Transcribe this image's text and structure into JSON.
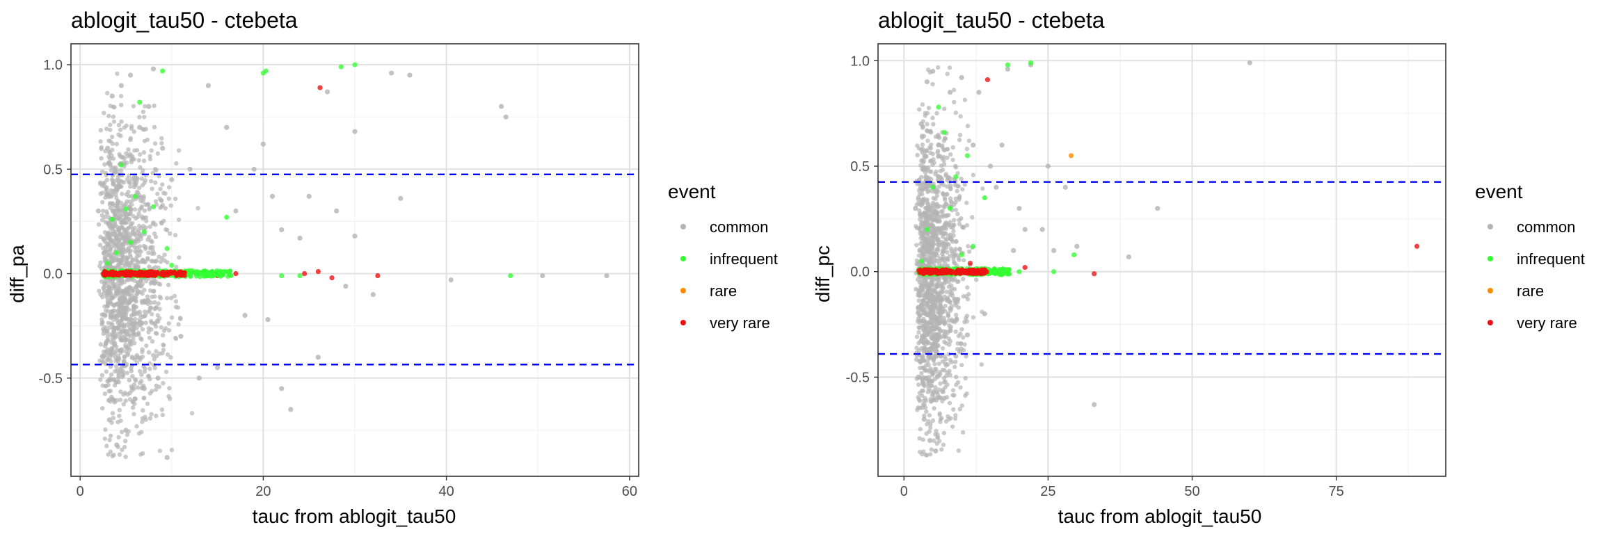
{
  "colors": {
    "common": "#b3b3b3",
    "infrequent": "#33ff33",
    "rare": "#ff8c00",
    "very rare": "#ee1111",
    "reference_line": "#0000ff",
    "grid_major": "#e0e0e0",
    "grid_minor": "#f0f0f0",
    "panel_border": "#333333"
  },
  "chart_data": [
    {
      "type": "scatter",
      "title": "ablogit_tau50 - ctebeta",
      "xlabel": "tauc from ablogit_tau50",
      "ylabel": "diff_pa",
      "xlim": [
        -1,
        61
      ],
      "ylim": [
        -0.97,
        1.1
      ],
      "x_ticks": [
        0,
        20,
        40,
        60
      ],
      "x_tick_labels": [
        "0",
        "20",
        "40",
        "60"
      ],
      "y_ticks": [
        -0.5,
        0.0,
        0.5,
        1.0
      ],
      "y_tick_labels": [
        "-0.5",
        "0.0",
        "0.5",
        "1.0"
      ],
      "grid": true,
      "reference_lines": [
        0.475,
        -0.435
      ],
      "legend": {
        "title": "event",
        "position": "right",
        "entries": [
          "common",
          "infrequent",
          "rare",
          "very rare"
        ]
      },
      "series": [
        {
          "name": "common",
          "points": [
            [
              2,
              0.3
            ],
            [
              2.5,
              -0.4
            ],
            [
              3,
              0.6
            ],
            [
              3.2,
              -0.7
            ],
            [
              3.5,
              0.85
            ],
            [
              4,
              -0.82
            ],
            [
              4.5,
              0.9
            ],
            [
              5,
              -0.75
            ],
            [
              5.5,
              0.95
            ],
            [
              6,
              -0.6
            ],
            [
              6.5,
              0.7
            ],
            [
              7,
              -0.55
            ],
            [
              7.5,
              0.8
            ],
            [
              8,
              0.98
            ],
            [
              8.5,
              -0.5
            ],
            [
              9,
              0.6
            ],
            [
              9.5,
              -0.88
            ],
            [
              10,
              0.45
            ],
            [
              11,
              -0.3
            ],
            [
              12,
              0.5
            ],
            [
              13,
              -0.5
            ],
            [
              14,
              0.9
            ],
            [
              15,
              -0.45
            ],
            [
              16,
              0.7
            ],
            [
              17,
              0.3
            ],
            [
              18,
              -0.2
            ],
            [
              19,
              0.5
            ],
            [
              20,
              0.62
            ],
            [
              20.5,
              -0.22
            ],
            [
              21,
              0.37
            ],
            [
              22,
              0.21
            ],
            [
              22,
              -0.55
            ],
            [
              23,
              -0.65
            ],
            [
              24,
              0.17
            ],
            [
              25,
              0.37
            ],
            [
              26,
              -0.4
            ],
            [
              27,
              0.87
            ],
            [
              28,
              0.3
            ],
            [
              29,
              -0.06
            ],
            [
              30,
              0.68
            ],
            [
              30,
              0.18
            ],
            [
              32,
              -0.1
            ],
            [
              34,
              0.96
            ],
            [
              35,
              0.36
            ],
            [
              36,
              0.95
            ],
            [
              40.5,
              -0.03
            ],
            [
              46,
              0.8
            ],
            [
              46.5,
              0.75
            ],
            [
              50.5,
              -0.01
            ],
            [
              57.5,
              -0.01
            ]
          ]
        },
        {
          "name": "infrequent",
          "points": [
            [
              3,
              0.05
            ],
            [
              3.5,
              0.26
            ],
            [
              4,
              0.1
            ],
            [
              4.5,
              0.52
            ],
            [
              5,
              0.31
            ],
            [
              5.5,
              0.15
            ],
            [
              6,
              0.37
            ],
            [
              6.5,
              0.82
            ],
            [
              7,
              0.2
            ],
            [
              8,
              0.32
            ],
            [
              9,
              0.97
            ],
            [
              9.5,
              0.12
            ],
            [
              10,
              0.04
            ],
            [
              12,
              0.0
            ],
            [
              14,
              -0.01
            ],
            [
              16,
              0.27
            ],
            [
              20,
              0.96
            ],
            [
              20.3,
              0.97
            ],
            [
              22,
              -0.01
            ],
            [
              24,
              -0.01
            ],
            [
              28.5,
              0.99
            ],
            [
              30,
              1.0
            ],
            [
              47,
              -0.01
            ]
          ]
        },
        {
          "name": "rare",
          "points": []
        },
        {
          "name": "very rare",
          "points": [
            [
              2.5,
              0.0
            ],
            [
              3,
              0.0
            ],
            [
              3.5,
              -0.01
            ],
            [
              4,
              0.0
            ],
            [
              4.5,
              0.0
            ],
            [
              5,
              0.01
            ],
            [
              5.5,
              0.0
            ],
            [
              6,
              0.0
            ],
            [
              6.5,
              0.0
            ],
            [
              7,
              0.0
            ],
            [
              7.5,
              0.0
            ],
            [
              8,
              0.0
            ],
            [
              8.5,
              0.0
            ],
            [
              9,
              0.0
            ],
            [
              9.5,
              0.0
            ],
            [
              10,
              0.0
            ],
            [
              10.5,
              0.0
            ],
            [
              11,
              0.0
            ],
            [
              13,
              0.0
            ],
            [
              15,
              -0.01
            ],
            [
              17,
              0.0
            ],
            [
              24.5,
              0.0
            ],
            [
              26,
              0.01
            ],
            [
              26.2,
              0.89
            ],
            [
              27.5,
              -0.02
            ],
            [
              32.5,
              -0.01
            ]
          ]
        }
      ]
    },
    {
      "type": "scatter",
      "title": "ablogit_tau50 - ctebeta",
      "xlabel": "tauc from ablogit_tau50",
      "ylabel": "diff_pc",
      "xlim": [
        -4.5,
        94
      ],
      "ylim": [
        -0.97,
        1.08
      ],
      "x_ticks": [
        0,
        25,
        50,
        75
      ],
      "x_tick_labels": [
        "0",
        "25",
        "50",
        "75"
      ],
      "y_ticks": [
        -0.5,
        0.0,
        0.5,
        1.0
      ],
      "y_tick_labels": [
        "-0.5",
        "0.0",
        "0.5",
        "1.0"
      ],
      "grid": true,
      "reference_lines": [
        0.425,
        -0.39
      ],
      "legend": {
        "title": "event",
        "position": "right",
        "entries": [
          "common",
          "infrequent",
          "rare",
          "very rare"
        ]
      },
      "series": [
        {
          "name": "common",
          "points": [
            [
              2,
              0.3
            ],
            [
              2.5,
              -0.5
            ],
            [
              3,
              0.7
            ],
            [
              3.5,
              -0.7
            ],
            [
              4,
              0.9
            ],
            [
              4.5,
              -0.8
            ],
            [
              5,
              0.95
            ],
            [
              5.5,
              -0.85
            ],
            [
              6,
              0.6
            ],
            [
              7,
              -0.6
            ],
            [
              8,
              0.85
            ],
            [
              9,
              -0.4
            ],
            [
              10,
              0.92
            ],
            [
              11,
              -0.3
            ],
            [
              12,
              0.6
            ],
            [
              13,
              0.85
            ],
            [
              14,
              -0.2
            ],
            [
              15,
              0.5
            ],
            [
              16,
              0.4
            ],
            [
              17,
              0.6
            ],
            [
              18,
              0.96
            ],
            [
              19,
              0.1
            ],
            [
              20,
              0.3
            ],
            [
              21,
              0.2
            ],
            [
              22,
              0.98
            ],
            [
              24,
              0.2
            ],
            [
              25,
              0.5
            ],
            [
              26,
              0.1
            ],
            [
              28,
              0.4
            ],
            [
              30,
              0.12
            ],
            [
              33,
              -0.63
            ],
            [
              39,
              0.07
            ],
            [
              44,
              0.3
            ],
            [
              60,
              0.99
            ]
          ]
        },
        {
          "name": "infrequent",
          "points": [
            [
              3,
              0.05
            ],
            [
              4,
              0.2
            ],
            [
              5,
              0.4
            ],
            [
              6,
              0.78
            ],
            [
              7,
              0.66
            ],
            [
              8,
              0.3
            ],
            [
              9,
              0.45
            ],
            [
              10,
              0.08
            ],
            [
              11,
              0.55
            ],
            [
              12,
              0.12
            ],
            [
              14,
              0.35
            ],
            [
              16,
              0.0
            ],
            [
              18,
              0.98
            ],
            [
              20,
              0.0
            ],
            [
              22,
              0.99
            ],
            [
              26,
              0.0
            ],
            [
              29.5,
              0.08
            ]
          ]
        },
        {
          "name": "rare",
          "points": [
            [
              29,
              0.55
            ]
          ]
        },
        {
          "name": "very rare",
          "points": [
            [
              2.5,
              0.0
            ],
            [
              3.5,
              0.0
            ],
            [
              4.5,
              0.0
            ],
            [
              5.5,
              0.0
            ],
            [
              6.5,
              0.0
            ],
            [
              7.5,
              0.0
            ],
            [
              8.5,
              0.0
            ],
            [
              9.5,
              0.0
            ],
            [
              10.5,
              0.0
            ],
            [
              11.5,
              0.04
            ],
            [
              13,
              0.0
            ],
            [
              14.5,
              0.91
            ],
            [
              16,
              0.0
            ],
            [
              17.5,
              0.0
            ],
            [
              21,
              0.02
            ],
            [
              33,
              -0.01
            ],
            [
              89,
              0.12
            ]
          ]
        }
      ]
    }
  ]
}
